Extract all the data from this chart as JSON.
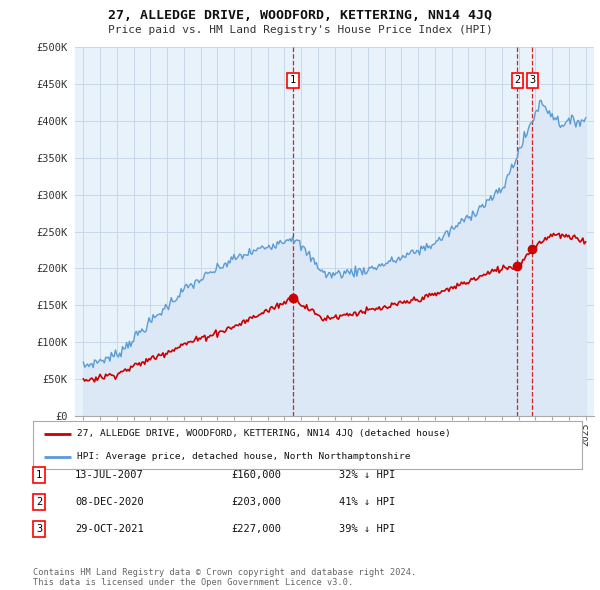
{
  "title": "27, ALLEDGE DRIVE, WOODFORD, KETTERING, NN14 4JQ",
  "subtitle": "Price paid vs. HM Land Registry's House Price Index (HPI)",
  "ylabel_ticks": [
    "£0",
    "£50K",
    "£100K",
    "£150K",
    "£200K",
    "£250K",
    "£300K",
    "£350K",
    "£400K",
    "£450K",
    "£500K"
  ],
  "ytick_values": [
    0,
    50000,
    100000,
    150000,
    200000,
    250000,
    300000,
    350000,
    400000,
    450000,
    500000
  ],
  "hpi_color": "#5b9bd5",
  "hpi_fill_color": "#dce8f5",
  "price_color": "#cc0000",
  "transactions": [
    {
      "label": "1",
      "date": "13-JUL-2007",
      "price": 160000,
      "pct": "32% ↓ HPI",
      "x_year": 2007.53
    },
    {
      "label": "2",
      "date": "08-DEC-2020",
      "price": 203000,
      "pct": "41% ↓ HPI",
      "x_year": 2020.92
    },
    {
      "label": "3",
      "date": "29-OCT-2021",
      "price": 227000,
      "pct": "39% ↓ HPI",
      "x_year": 2021.82
    }
  ],
  "legend_entries": [
    "27, ALLEDGE DRIVE, WOODFORD, KETTERING, NN14 4JQ (detached house)",
    "HPI: Average price, detached house, North Northamptonshire"
  ],
  "footer": [
    "Contains HM Land Registry data © Crown copyright and database right 2024.",
    "This data is licensed under the Open Government Licence v3.0."
  ],
  "xlim": [
    1994.5,
    2025.5
  ],
  "ylim": [
    0,
    500000
  ],
  "background_color": "#ffffff",
  "chart_bg_color": "#e8f2fb",
  "grid_color": "#c8d8e8"
}
